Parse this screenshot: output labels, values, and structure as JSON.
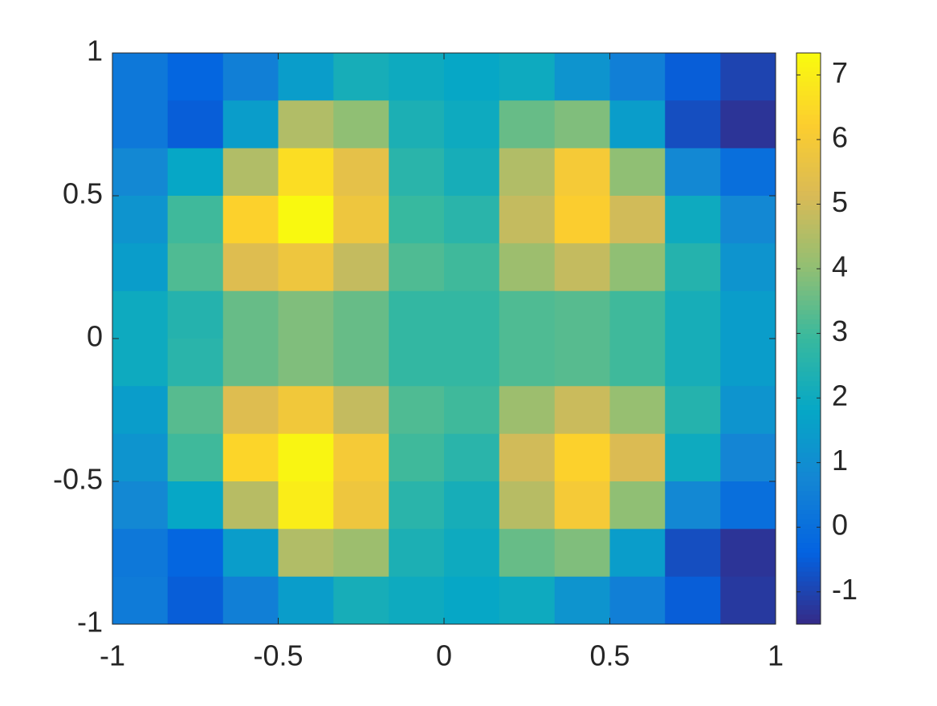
{
  "chart_data": {
    "type": "heatmap",
    "x": [
      -0.917,
      -0.75,
      -0.583,
      -0.417,
      -0.25,
      -0.083,
      0.083,
      0.25,
      0.417,
      0.583,
      0.75,
      0.917
    ],
    "y": [
      0.917,
      0.75,
      0.583,
      0.417,
      0.25,
      0.083,
      -0.083,
      -0.25,
      -0.417,
      -0.583,
      -0.75,
      -0.917
    ],
    "z": [
      [
        0.3,
        -0.3,
        0.5,
        1.5,
        2.2,
        2.0,
        1.8,
        2.0,
        1.2,
        0.5,
        -0.5,
        -1.0
      ],
      [
        0.3,
        -0.5,
        1.5,
        4.5,
        4.0,
        2.3,
        2.0,
        3.5,
        3.8,
        1.5,
        -0.8,
        -1.3
      ],
      [
        0.8,
        1.8,
        4.5,
        6.6,
        5.5,
        2.6,
        2.2,
        4.5,
        6.0,
        4.0,
        0.8,
        0.0
      ],
      [
        1.2,
        3.0,
        6.3,
        7.3,
        5.8,
        2.9,
        2.6,
        4.8,
        6.2,
        5.0,
        2.0,
        0.8
      ],
      [
        1.5,
        3.2,
        5.3,
        5.8,
        4.8,
        3.2,
        3.0,
        4.2,
        4.8,
        4.0,
        2.5,
        1.2
      ],
      [
        2.0,
        2.5,
        3.5,
        3.8,
        3.5,
        2.8,
        2.8,
        3.2,
        3.3,
        3.0,
        2.2,
        1.5
      ],
      [
        2.0,
        2.6,
        3.5,
        3.8,
        3.5,
        2.8,
        2.8,
        3.2,
        3.3,
        3.0,
        2.2,
        1.5
      ],
      [
        1.5,
        3.3,
        5.3,
        5.9,
        4.8,
        3.2,
        3.0,
        4.2,
        4.9,
        4.1,
        2.5,
        1.2
      ],
      [
        1.2,
        3.0,
        6.4,
        7.2,
        6.0,
        3.0,
        2.6,
        5.0,
        6.3,
        5.2,
        2.0,
        0.7
      ],
      [
        0.8,
        1.8,
        4.6,
        7.0,
        5.8,
        2.6,
        2.2,
        4.6,
        6.0,
        4.0,
        0.8,
        0.0
      ],
      [
        0.3,
        -0.3,
        1.5,
        4.5,
        4.2,
        2.3,
        2.0,
        3.5,
        3.8,
        1.5,
        -0.8,
        -1.3
      ],
      [
        0.4,
        -0.5,
        0.5,
        1.5,
        2.2,
        2.0,
        1.8,
        2.0,
        1.2,
        0.5,
        -0.5,
        -1.2
      ]
    ],
    "xlim": [
      -1,
      1
    ],
    "ylim": [
      -1,
      1
    ],
    "xticks": [
      -1,
      -0.5,
      0,
      0.5,
      1
    ],
    "yticks": [
      -1,
      -0.5,
      0,
      0.5,
      1
    ],
    "clim": [
      -1.5,
      7.34
    ],
    "cticks": [
      -1,
      0,
      1,
      2,
      3,
      4,
      5,
      6,
      7
    ],
    "colormap": [
      "#352a87",
      "#0363e1",
      "#1485d4",
      "#06a7c6",
      "#38b99e",
      "#92bf73",
      "#d9ba56",
      "#fcce2e",
      "#f9fb0e"
    ]
  }
}
